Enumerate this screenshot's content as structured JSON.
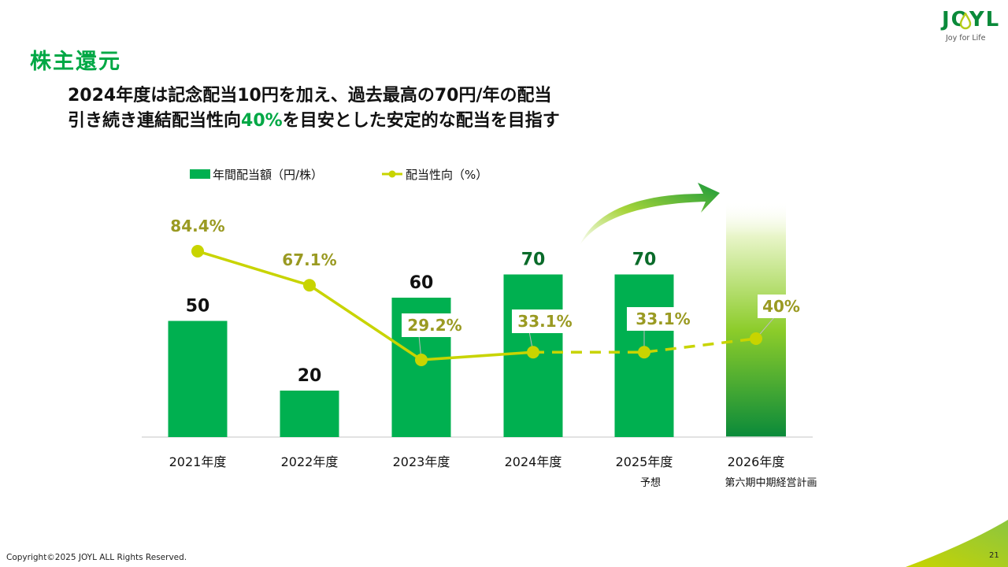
{
  "section_title": "株主還元",
  "headline": {
    "line1": "2024年度は記念配当10円を加え、過去最高の70円/年の配当",
    "line2_before": "引き続き連結配当性向",
    "line2_accent": "40%",
    "line2_after": "を目安とした安定的な配当を目指す"
  },
  "logo": {
    "wordmark": "JOYL",
    "tagline": "Joy for Life"
  },
  "chart_data": {
    "type": "bar",
    "categories": [
      "2021年度",
      "2022年度",
      "2023年度",
      "2024年度",
      "2025年度",
      "2026年度"
    ],
    "category_sublabels": [
      "",
      "",
      "",
      "",
      "予想",
      "第六期中期経営計画"
    ],
    "series": [
      {
        "name": "年間配当額（円/株）",
        "type": "bar",
        "values": [
          50,
          20,
          60,
          70,
          70,
          null
        ],
        "labels": [
          "50",
          "20",
          "60",
          "70",
          "70",
          ""
        ],
        "color": "#00b050"
      },
      {
        "name": "配当性向（%）",
        "type": "line",
        "values": [
          84.4,
          67.1,
          29.2,
          33.1,
          33.1,
          40
        ],
        "labels": [
          "84.4%",
          "67.1%",
          "29.2%",
          "33.1%",
          "33.1%",
          "40%"
        ],
        "dashed_from_index": 3,
        "color": "#c8d400"
      }
    ],
    "legend_position": "top"
  },
  "colors": {
    "brand_green": "#00a845",
    "bar_green": "#00b050",
    "line_yellow": "#c8d400",
    "label_olive": "#9a9a22",
    "dark_green_label": "#0a6b2a"
  },
  "footer": {
    "copyright": "Copyright©2025 JOYL ALL Rights Reserved.",
    "page_number": "21"
  }
}
